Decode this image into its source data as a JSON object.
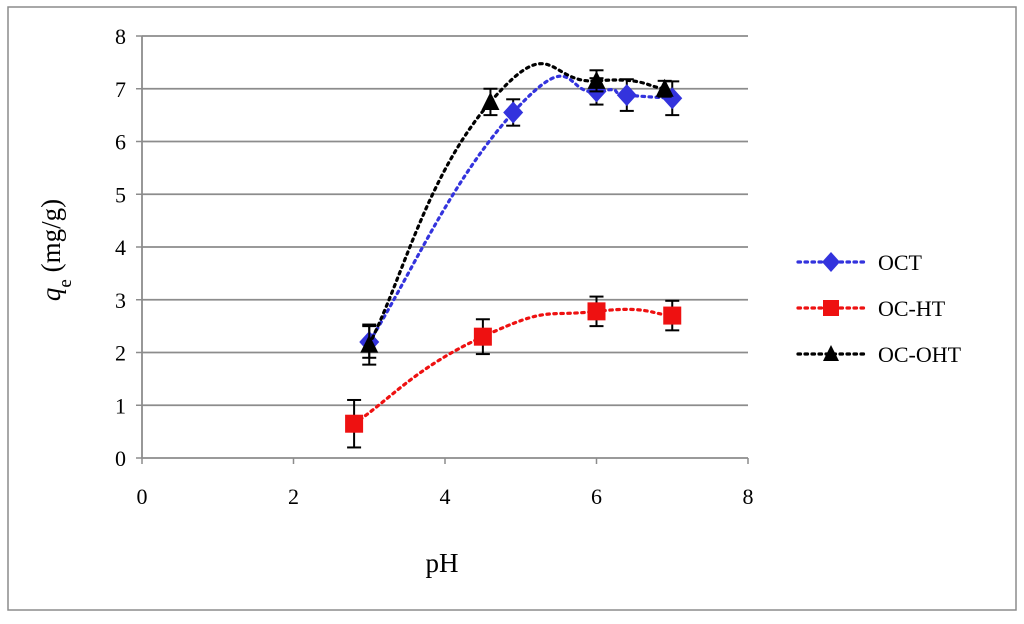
{
  "chart_data": {
    "type": "scatter",
    "title": "",
    "xlabel": "pH",
    "ylabel": {
      "symbol": "q",
      "subscript": "e",
      "unit": " (mg/g)"
    },
    "xlim": [
      0,
      8
    ],
    "ylim": [
      0,
      8
    ],
    "x_ticks": [
      0,
      2,
      4,
      6,
      8
    ],
    "y_ticks": [
      0,
      1,
      2,
      3,
      4,
      5,
      6,
      7,
      8
    ],
    "grid": "horizontal",
    "legend_position": "right",
    "trendline": "smooth dotted",
    "series": [
      {
        "name": "OCT",
        "marker": "diamond",
        "color": "#3333dd",
        "x": [
          3.0,
          4.9,
          6.0,
          6.4,
          7.0
        ],
        "y": [
          2.2,
          6.55,
          6.95,
          6.88,
          6.82
        ],
        "error": [
          0.3,
          0.25,
          0.25,
          0.3,
          0.32
        ]
      },
      {
        "name": "OC-HT",
        "marker": "square",
        "color": "#ee1111",
        "x": [
          2.8,
          4.5,
          6.0,
          7.0
        ],
        "y": [
          0.65,
          2.3,
          2.78,
          2.7
        ],
        "error": [
          0.45,
          0.33,
          0.28,
          0.28
        ]
      },
      {
        "name": "OC-OHT",
        "marker": "triangle",
        "color": "#000000",
        "x": [
          3.0,
          4.6,
          6.0,
          6.9
        ],
        "y": [
          2.15,
          6.75,
          7.15,
          7.0
        ],
        "error": [
          0.38,
          0.25,
          0.2,
          0.15
        ]
      }
    ]
  }
}
